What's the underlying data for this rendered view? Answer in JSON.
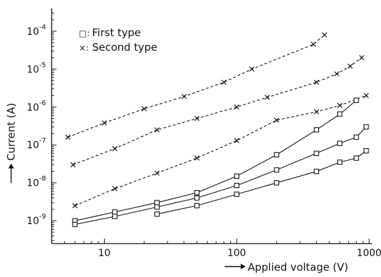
{
  "chart_data": {
    "type": "line",
    "title": "",
    "xlabel": "Applied voltage (V)",
    "ylabel": "Current (A)",
    "x_scale": "log",
    "y_scale": "log",
    "xlim": [
      4,
      1050
    ],
    "ylim": [
      2.5e-10,
      0.0004
    ],
    "grid": false,
    "legend_position": "top-left",
    "x_ticks": [
      {
        "value": 10,
        "label": "10"
      },
      {
        "value": 100,
        "label": "100"
      },
      {
        "value": 1000,
        "label": "1000"
      }
    ],
    "y_ticks": [
      {
        "value": 1e-09,
        "base": "10",
        "exp": "-9"
      },
      {
        "value": 1e-08,
        "base": "10",
        "exp": "-8"
      },
      {
        "value": 1e-07,
        "base": "10",
        "exp": "-7"
      },
      {
        "value": 1e-06,
        "base": "10",
        "exp": "-6"
      },
      {
        "value": 1e-05,
        "base": "10",
        "exp": "-5"
      },
      {
        "value": 0.0001,
        "base": "10",
        "exp": "-4"
      }
    ],
    "legend": [
      {
        "label": "First type",
        "marker": "square",
        "sym": "□:"
      },
      {
        "label": "Second type",
        "marker": "x",
        "sym": "×:"
      }
    ],
    "series": [
      {
        "group": "Second type",
        "marker": "x",
        "style": "dashed",
        "x": [
          5.3,
          10,
          20,
          40,
          80,
          130,
          380,
          460
        ],
        "y": [
          1.6e-07,
          3.8e-07,
          9e-07,
          1.9e-06,
          4.5e-06,
          1e-05,
          4.5e-05,
          8e-05
        ]
      },
      {
        "group": "Second type",
        "marker": "x",
        "style": "dashed",
        "x": [
          5.8,
          12,
          25,
          50,
          100,
          170,
          400,
          570,
          720,
          880
        ],
        "y": [
          3e-08,
          8e-08,
          2.5e-07,
          5e-07,
          1e-06,
          1.8e-06,
          4.5e-06,
          7.5e-06,
          1.2e-05,
          2e-05
        ]
      },
      {
        "group": "Second type",
        "marker": "x",
        "style": "dashed",
        "x": [
          6,
          12,
          25,
          50,
          100,
          200,
          400,
          600,
          950
        ],
        "y": [
          2.5e-09,
          7e-09,
          1.8e-08,
          4.5e-08,
          1.3e-07,
          4.5e-07,
          7.5e-07,
          1.1e-06,
          2e-06
        ]
      },
      {
        "group": "First type",
        "marker": "square",
        "style": "solid",
        "x": [
          6,
          12,
          25,
          50,
          100,
          200,
          400,
          600,
          800
        ],
        "y": [
          1e-09,
          1.7e-09,
          3e-09,
          5.5e-09,
          1.5e-08,
          5.5e-08,
          2.5e-07,
          6.5e-07,
          1.5e-06
        ]
      },
      {
        "group": "First type",
        "marker": "square",
        "style": "solid",
        "x": [
          6,
          12,
          25,
          50,
          100,
          200,
          400,
          600,
          800,
          950
        ],
        "y": [
          8e-10,
          1.3e-09,
          2.3e-09,
          4e-09,
          8.5e-09,
          2.2e-08,
          6e-08,
          1.1e-07,
          1.6e-07,
          3e-07
        ]
      },
      {
        "group": "First type",
        "marker": "square",
        "style": "solid",
        "x": [
          25,
          50,
          100,
          200,
          400,
          600,
          800,
          950
        ],
        "y": [
          1.5e-09,
          2.5e-09,
          5e-09,
          1e-08,
          2e-08,
          3.5e-08,
          4.5e-08,
          7e-08
        ]
      }
    ]
  }
}
